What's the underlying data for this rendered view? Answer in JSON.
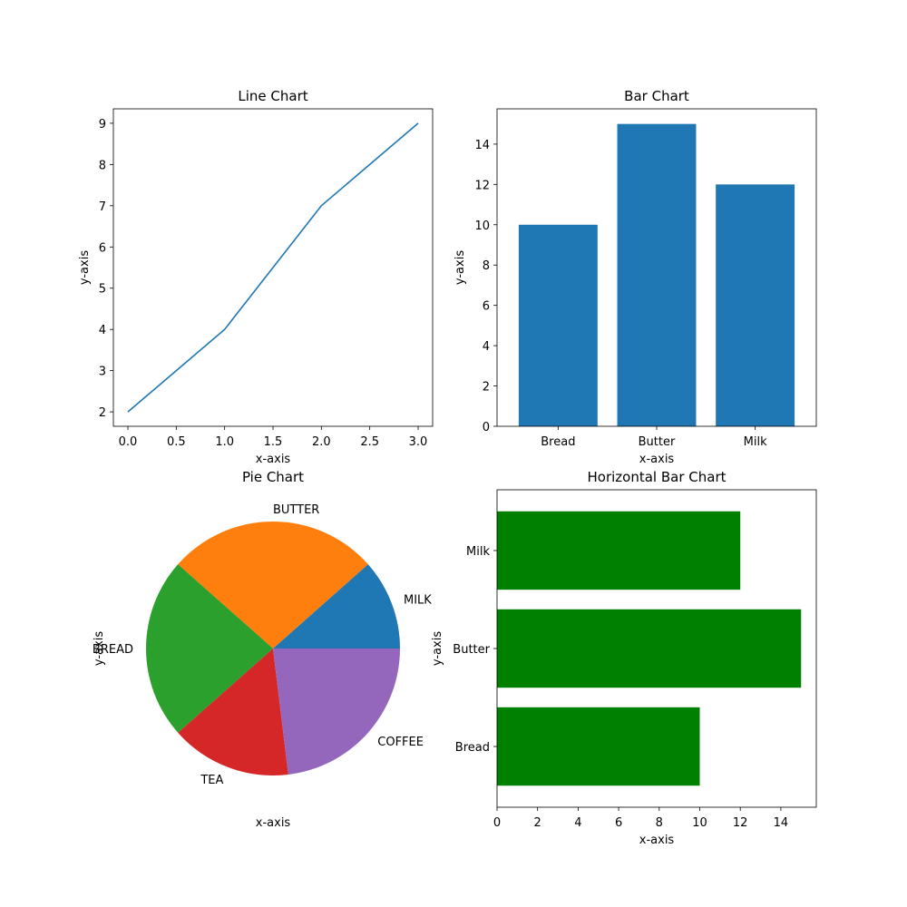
{
  "chart_data": [
    {
      "type": "line",
      "title": "Line Chart",
      "xlabel": "x-axis",
      "ylabel": "y-axis",
      "x": [
        0,
        1,
        2,
        3
      ],
      "series": [
        {
          "values": [
            2,
            4,
            7,
            9
          ]
        }
      ],
      "xlim": [
        -0.15,
        3.15
      ],
      "ylim": [
        1.65,
        9.35
      ],
      "xticks": [
        0,
        0.5,
        1,
        1.5,
        2,
        2.5,
        3
      ],
      "xtick_labels": [
        "0.0",
        "0.5",
        "1.0",
        "1.5",
        "2.0",
        "2.5",
        "3.0"
      ],
      "yticks": [
        2,
        3,
        4,
        5,
        6,
        7,
        8,
        9
      ],
      "ytick_labels": [
        "2",
        "3",
        "4",
        "5",
        "6",
        "7",
        "8",
        "9"
      ],
      "color": "#1f77b4",
      "grid": false
    },
    {
      "type": "bar",
      "title": "Bar Chart",
      "xlabel": "x-axis",
      "ylabel": "y-axis",
      "categories": [
        "Bread",
        "Butter",
        "Milk"
      ],
      "values": [
        10,
        15,
        12
      ],
      "ylim": [
        0,
        15.75
      ],
      "yticks": [
        0,
        2,
        4,
        6,
        8,
        10,
        12,
        14
      ],
      "ytick_labels": [
        "0",
        "2",
        "4",
        "6",
        "8",
        "10",
        "12",
        "14"
      ],
      "color": "#1f77b4",
      "grid": false
    },
    {
      "type": "pie",
      "title": "Pie Chart",
      "xlabel": "x-axis",
      "ylabel": "y-axis",
      "labels": [
        "MILK",
        "BUTTER",
        "BREAD",
        "TEA",
        "COFFEE"
      ],
      "values": [
        3,
        7,
        6,
        4,
        6
      ],
      "colors": [
        "#1f77b4",
        "#ff7f0e",
        "#2ca02c",
        "#d62728",
        "#9467bd"
      ]
    },
    {
      "type": "bar",
      "orientation": "horizontal",
      "title": "Horizontal Bar Chart",
      "xlabel": "x-axis",
      "ylabel": "y-axis",
      "categories": [
        "Bread",
        "Butter",
        "Milk"
      ],
      "values": [
        10,
        15,
        12
      ],
      "xlim": [
        0,
        15.75
      ],
      "xticks": [
        0,
        2,
        4,
        6,
        8,
        10,
        12,
        14
      ],
      "xtick_labels": [
        "0",
        "2",
        "4",
        "6",
        "8",
        "10",
        "12",
        "14"
      ],
      "color": "#008000",
      "grid": false
    }
  ]
}
